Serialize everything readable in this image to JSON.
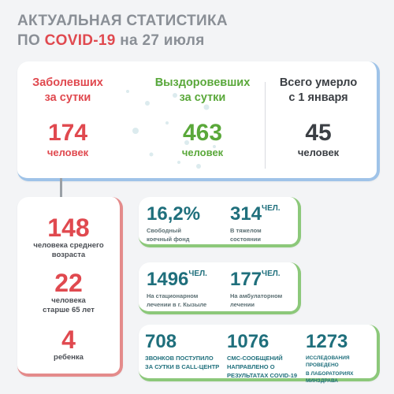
{
  "header": {
    "line1": "АКТУАЛЬНАЯ СТАТИСТИКА",
    "line2_prefix": "ПО ",
    "line2_highlight": "COVID-19",
    "line2_suffix": " на 27 июля"
  },
  "colors": {
    "red": "#e0494f",
    "green": "#5aa83a",
    "teal": "#1f6f7c",
    "gray": "#8a8f96"
  },
  "summary": {
    "cases": {
      "label1": "Заболевших",
      "label2": "за сутки",
      "value": "174",
      "unit": "человек"
    },
    "recovered": {
      "label1": "Выздоровевших",
      "label2": "за сутки",
      "value": "463",
      "unit": "человек"
    },
    "deaths": {
      "label1": "Всего умерло",
      "label2": "с 1 января",
      "value": "45",
      "unit": "человек"
    }
  },
  "breakdown": [
    {
      "value": "148",
      "desc1": "человека среднего",
      "desc2": "возраста"
    },
    {
      "value": "22",
      "desc1": "человека",
      "desc2": "старше 65 лет"
    },
    {
      "value": "4",
      "desc1": "ребенка",
      "desc2": ""
    }
  ],
  "beds": {
    "free_pct": {
      "value": "16,2%",
      "desc1": "Свободный",
      "desc2": "коечный фонд"
    },
    "severe": {
      "value": "314",
      "unit": "ЧЕЛ.",
      "desc1": "В тяжелом",
      "desc2": "состоянии"
    }
  },
  "treatment": {
    "inpatient": {
      "value": "1496",
      "unit": "ЧЕЛ.",
      "desc1": "На стационарном",
      "desc2": "лечении в г. Кызыле"
    },
    "outpatient": {
      "value": "177",
      "unit": "ЧЕЛ.",
      "desc1": "На амбулаторном",
      "desc2": "лечении"
    }
  },
  "contacts": {
    "calls": {
      "value": "708",
      "desc1": "ЗВОНКОВ ПОСТУПИЛО",
      "desc2": "ЗА СУТКИ В CALL-ЦЕНТР"
    },
    "sms": {
      "value": "1076",
      "desc1": "СМС-СООБЩЕНИЙ",
      "desc2": "НАПРАВЛЕНО О",
      "desc3": "РЕЗУЛЬТАТАХ COVID-19"
    },
    "tests": {
      "value": "1273",
      "desc1": "ИССЛЕДОВАНИЯ ПРОВЕДЕНО",
      "desc2": "В ЛАБОРАТОРИЯХ МИНЗДРАВА"
    }
  }
}
